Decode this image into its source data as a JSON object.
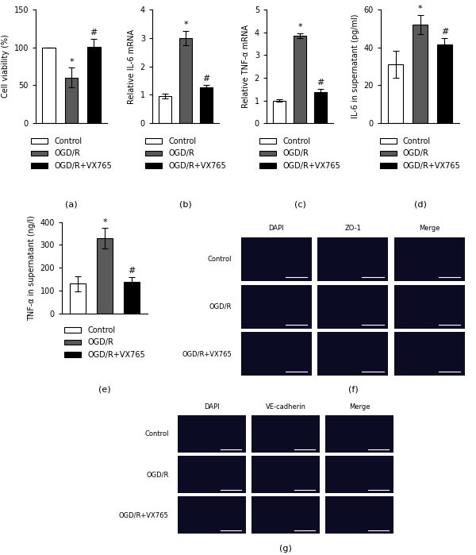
{
  "chart_data": [
    {
      "type": "bar",
      "panel": "(a)",
      "y_label": "Cell viability (%)",
      "categories": [
        "Control",
        "OGD/R",
        "OGD/R+VX765"
      ],
      "values": [
        100,
        60,
        101
      ],
      "errors": [
        0,
        13,
        10
      ],
      "colors": [
        "#ffffff",
        "#5a5a5a",
        "#000000"
      ],
      "significance": [
        null,
        "*",
        "#"
      ],
      "ylim": [
        0,
        150
      ],
      "yticks": [
        0,
        50,
        100,
        150
      ],
      "tick_labels": "y",
      "legend": "below"
    },
    {
      "type": "bar",
      "panel": "(b)",
      "y_label": "Relative IL-6 mRNA",
      "categories": [
        "Control",
        "OGD/R",
        "OGD/R+VX765"
      ],
      "values": [
        0.95,
        3.0,
        1.25
      ],
      "errors": [
        0.08,
        0.25,
        0.1
      ],
      "colors": [
        "#ffffff",
        "#5a5a5a",
        "#000000"
      ],
      "significance": [
        null,
        "*",
        "#"
      ],
      "ylim": [
        0,
        4
      ],
      "yticks": [
        0,
        1,
        2,
        3,
        4
      ],
      "tick_labels": "y",
      "legend": "below"
    },
    {
      "type": "bar",
      "panel": "(c)",
      "y_label": "Relative TNF-α mRNA",
      "categories": [
        "Control",
        "OGD/R",
        "OGD/R+VX765"
      ],
      "values": [
        1.0,
        3.85,
        1.38
      ],
      "errors": [
        0.05,
        0.1,
        0.12
      ],
      "colors": [
        "#ffffff",
        "#5a5a5a",
        "#000000"
      ],
      "significance": [
        null,
        "*",
        "#"
      ],
      "ylim": [
        0,
        5
      ],
      "yticks": [
        0,
        1,
        2,
        3,
        4,
        5
      ],
      "tick_labels": "y",
      "legend": "below"
    },
    {
      "type": "bar",
      "panel": "(d)",
      "y_label": "IL-6 in supernatant (pg/ml)",
      "categories": [
        "Control",
        "OGD/R",
        "OGD/R+VX765"
      ],
      "values": [
        31,
        52,
        41.5
      ],
      "errors": [
        7,
        5,
        3.5
      ],
      "colors": [
        "#ffffff",
        "#5a5a5a",
        "#000000"
      ],
      "significance": [
        null,
        "*",
        "#"
      ],
      "ylim": [
        0,
        60
      ],
      "yticks": [
        0,
        20,
        40,
        60
      ],
      "tick_labels": "y",
      "legend": "below"
    },
    {
      "type": "bar",
      "panel": "(e)",
      "y_label": "TNF-α in supernatant (ng/l)",
      "categories": [
        "Control",
        "OGD/R",
        "OGD/R+VX765"
      ],
      "values": [
        130,
        330,
        140
      ],
      "errors": [
        33,
        45,
        20
      ],
      "colors": [
        "#ffffff",
        "#5a5a5a",
        "#000000"
      ],
      "significance": [
        null,
        "*",
        "#"
      ],
      "ylim": [
        0,
        400
      ],
      "yticks": [
        0,
        100,
        200,
        300,
        400
      ],
      "tick_labels": "y",
      "legend": "below"
    }
  ],
  "image_panels": [
    {
      "panel": "(f)",
      "columns": [
        "DAPI",
        "ZO-1",
        "Merge"
      ],
      "rows": [
        "Control",
        "OGD/R",
        "OGD/R+VX765"
      ]
    },
    {
      "panel": "(g)",
      "columns": [
        "DAPI",
        "VE-cadherin",
        "Merge"
      ],
      "rows": [
        "Control",
        "OGD/R",
        "OGD/R+VX765"
      ]
    }
  ]
}
